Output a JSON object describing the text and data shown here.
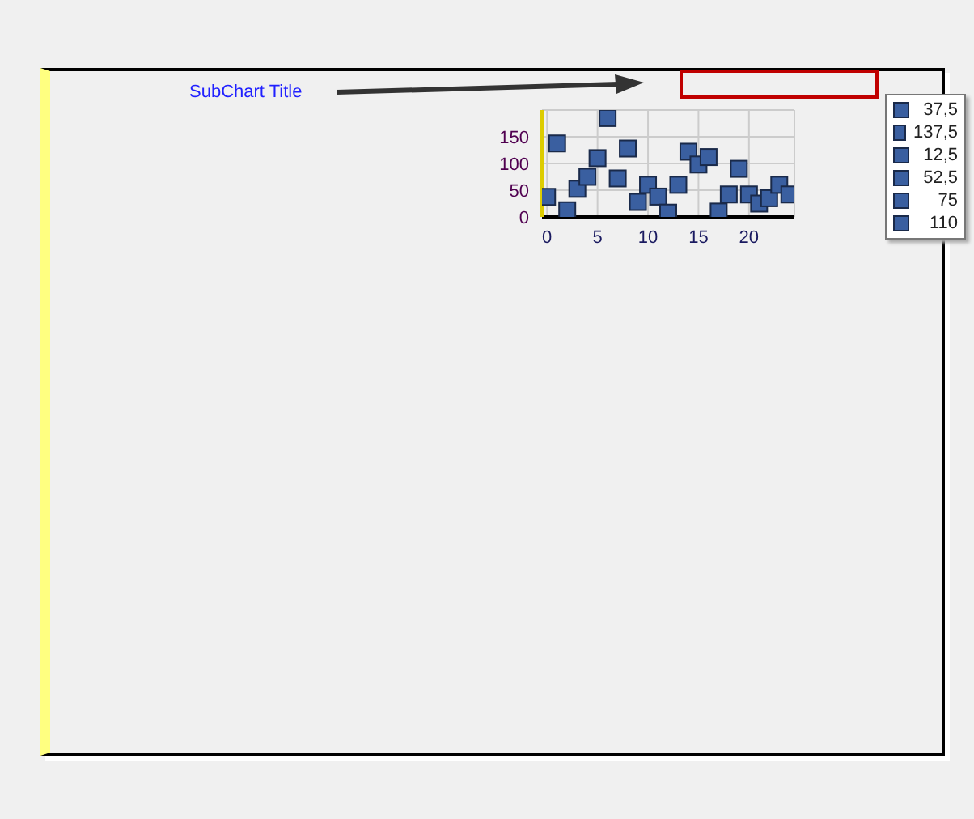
{
  "chart_data": {
    "type": "scatter",
    "title": "SubChart Title",
    "series": [
      {
        "name": "37,5",
        "color": "#3a5fa0",
        "x": [
          0
        ],
        "values": [
          37.5
        ]
      },
      {
        "name": "137,5",
        "color": "#3a5fa0",
        "x": [
          1
        ],
        "values": [
          137.5
        ]
      },
      {
        "name": "12,5",
        "color": "#3a5fa0",
        "x": [
          2
        ],
        "values": [
          12.5
        ]
      },
      {
        "name": "52,5",
        "color": "#3a5fa0",
        "x": [
          3
        ],
        "values": [
          52.5
        ]
      },
      {
        "name": "75",
        "color": "#3a5fa0",
        "x": [
          4
        ],
        "values": [
          75
        ]
      },
      {
        "name": "110",
        "color": "#3a5fa0",
        "x": [
          5
        ],
        "values": [
          110
        ]
      },
      {
        "color": "#3a5fa0",
        "x": [
          6,
          7,
          8,
          9,
          10,
          11,
          12,
          13,
          14,
          15,
          16,
          17,
          18,
          19,
          20,
          21,
          22,
          23,
          24
        ],
        "values": [
          185,
          72,
          128,
          28,
          60,
          38,
          8,
          60,
          122,
          98,
          112,
          10,
          42,
          90,
          42,
          25,
          35,
          60,
          42
        ]
      }
    ],
    "xlim": [
      -0.5,
      24.5
    ],
    "xticks": [
      0,
      5,
      10,
      15,
      20
    ],
    "ylim": [
      0,
      200
    ],
    "yticks": [
      0,
      50,
      100,
      150
    ],
    "grid": true,
    "marker": "square",
    "legend": "right"
  }
}
